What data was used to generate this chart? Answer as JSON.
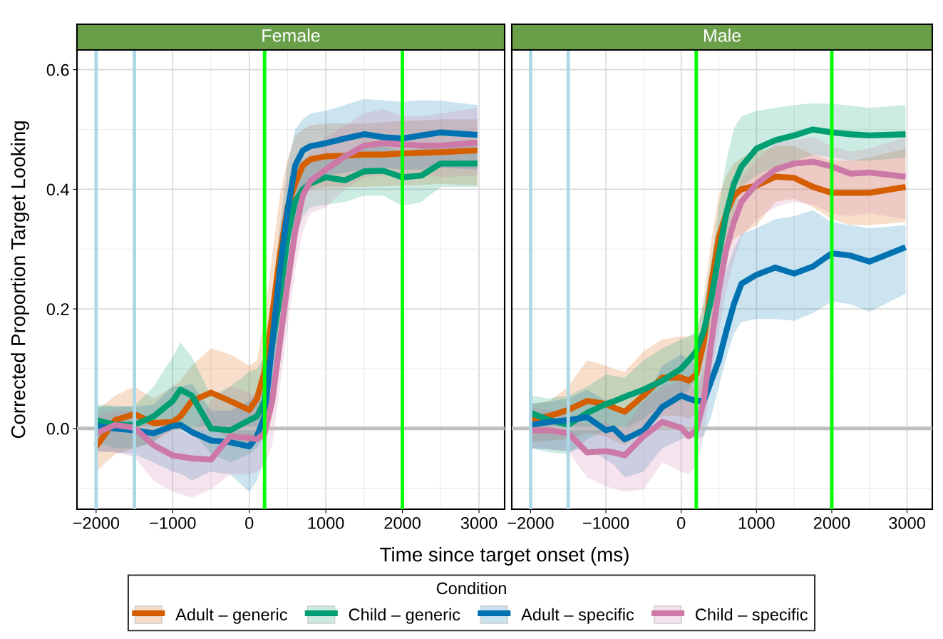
{
  "chart_data": [
    {
      "type": "line",
      "title": "Female",
      "xlabel": "Time since target onset (ms)",
      "ylabel": "Corrected Proportion Target Looking",
      "legend_title": "Condition",
      "legend": "bottom",
      "grid": true,
      "xlim": [
        -2250,
        3335
      ],
      "ylim": [
        -0.135,
        0.633
      ],
      "xticks": [
        -2000,
        -1000,
        0,
        1000,
        2000,
        3000
      ],
      "yticks": [
        {
          "value": 0,
          "label": "0.0"
        },
        0.2,
        0.4,
        0.6
      ],
      "ref_lines": [
        {
          "axis": "x",
          "value": -2000,
          "color": "#add8e6"
        },
        {
          "axis": "x",
          "value": -1500,
          "color": "#add8e6"
        },
        {
          "axis": "x",
          "value": 200,
          "color": "#00ff00"
        },
        {
          "axis": "x",
          "value": 2000,
          "color": "#00ff00"
        },
        {
          "axis": "y",
          "value": 0,
          "color": "#bebebe"
        }
      ],
      "x": [
        -2000,
        -1750,
        -1500,
        -1250,
        -1000,
        -900,
        -750,
        -500,
        -250,
        0,
        100,
        200,
        300,
        400,
        500,
        600,
        700,
        800,
        1000,
        1250,
        1500,
        1750,
        2000,
        2250,
        2500,
        2980
      ],
      "series": [
        {
          "name": "Adult – generic",
          "color": "#d55e00",
          "values": [
            -0.03,
            0.014,
            0.024,
            0.009,
            0.011,
            0.02,
            0.046,
            0.06,
            0.046,
            0.031,
            0.05,
            0.095,
            0.19,
            0.29,
            0.37,
            0.41,
            0.44,
            0.45,
            0.455,
            0.456,
            0.458,
            0.458,
            0.46,
            0.461,
            0.462,
            0.465
          ],
          "upper": [
            0.03,
            0.055,
            0.07,
            0.05,
            0.07,
            0.08,
            0.105,
            0.134,
            0.124,
            0.105,
            0.114,
            0.19,
            0.29,
            0.39,
            0.45,
            0.49,
            0.5,
            0.507,
            0.51,
            0.51,
            0.51,
            0.512,
            0.514,
            0.515,
            0.517,
            0.517
          ],
          "lower": [
            -0.072,
            -0.043,
            -0.033,
            -0.023,
            -0.003,
            -0.003,
            0.0,
            0.0,
            -0.018,
            -0.033,
            -0.023,
            -0.003,
            0.095,
            0.19,
            0.29,
            0.36,
            0.39,
            0.4,
            0.404,
            0.404,
            0.404,
            0.405,
            0.406,
            0.407,
            0.409,
            0.406
          ]
        },
        {
          "name": "Child – generic",
          "color": "#009e73",
          "values": [
            0.014,
            0.006,
            0.006,
            0.02,
            0.046,
            0.065,
            0.055,
            0.0,
            -0.003,
            0.014,
            0.02,
            0.046,
            0.14,
            0.22,
            0.32,
            0.38,
            0.4,
            0.41,
            0.42,
            0.415,
            0.43,
            0.431,
            0.42,
            0.423,
            0.443,
            0.443
          ],
          "upper": [
            0.04,
            0.038,
            0.038,
            0.07,
            0.12,
            0.144,
            0.12,
            0.055,
            0.07,
            0.095,
            0.1,
            0.12,
            0.19,
            0.29,
            0.39,
            0.43,
            0.45,
            0.455,
            0.458,
            0.458,
            0.468,
            0.472,
            0.463,
            0.468,
            0.472,
            0.472
          ],
          "lower": [
            -0.023,
            -0.033,
            -0.033,
            -0.023,
            0.006,
            0.006,
            -0.003,
            -0.043,
            -0.057,
            -0.043,
            -0.033,
            -0.013,
            0.07,
            0.144,
            0.24,
            0.315,
            0.355,
            0.37,
            0.374,
            0.379,
            0.389,
            0.389,
            0.372,
            0.379,
            0.404,
            0.404
          ]
        },
        {
          "name": "Adult – specific",
          "color": "#0072b2",
          "values": [
            0.004,
            0.0,
            -0.003,
            -0.008,
            0.004,
            0.006,
            -0.006,
            -0.02,
            -0.023,
            -0.03,
            -0.013,
            0.02,
            0.144,
            0.266,
            0.365,
            0.44,
            0.465,
            0.472,
            0.477,
            0.485,
            0.492,
            0.487,
            0.485,
            0.49,
            0.495,
            0.491
          ],
          "upper": [
            0.036,
            0.036,
            0.036,
            0.04,
            0.07,
            0.07,
            0.075,
            0.03,
            0.03,
            0.046,
            0.06,
            0.095,
            0.217,
            0.34,
            0.44,
            0.5,
            0.517,
            0.527,
            0.531,
            0.541,
            0.551,
            0.549,
            0.546,
            0.549,
            0.548,
            0.541
          ],
          "lower": [
            -0.038,
            -0.04,
            -0.043,
            -0.057,
            -0.072,
            -0.075,
            -0.087,
            -0.072,
            -0.077,
            -0.106,
            -0.087,
            -0.052,
            0.07,
            0.19,
            0.29,
            0.36,
            0.4,
            0.42,
            0.423,
            0.428,
            0.433,
            0.436,
            0.433,
            0.433,
            0.436,
            0.433
          ]
        },
        {
          "name": "Child – specific",
          "color": "#cc79a7",
          "values": [
            -0.008,
            0.006,
            0.001,
            -0.028,
            -0.045,
            -0.047,
            -0.05,
            -0.052,
            -0.013,
            -0.016,
            -0.018,
            -0.008,
            0.046,
            0.144,
            0.242,
            0.33,
            0.39,
            0.414,
            0.433,
            0.455,
            0.473,
            0.477,
            0.475,
            0.473,
            0.473,
            0.478
          ],
          "upper": [
            0.02,
            0.03,
            0.03,
            0.011,
            -0.003,
            -0.005,
            -0.013,
            0.046,
            0.07,
            0.06,
            0.055,
            0.07,
            0.144,
            0.242,
            0.34,
            0.414,
            0.448,
            0.463,
            0.487,
            0.507,
            0.527,
            0.534,
            0.522,
            0.522,
            0.527,
            0.536
          ],
          "lower": [
            -0.038,
            -0.04,
            -0.048,
            -0.087,
            -0.106,
            -0.11,
            -0.116,
            -0.102,
            -0.077,
            -0.077,
            -0.072,
            -0.062,
            -0.028,
            0.07,
            0.168,
            0.266,
            0.33,
            0.36,
            0.37,
            0.4,
            0.42,
            0.423,
            0.423,
            0.425,
            0.42,
            0.423
          ]
        }
      ]
    },
    {
      "type": "line",
      "title": "Male",
      "grid": true,
      "tick_labels": "x",
      "xlim": [
        -2250,
        3335
      ],
      "ylim": [
        -0.135,
        0.633
      ],
      "xticks": [
        -2000,
        -1000,
        0,
        1000,
        2000,
        3000
      ],
      "yticks": [
        {
          "value": 0,
          "label": null
        },
        {
          "value": 0.2,
          "label": null
        },
        {
          "value": 0.4,
          "label": null
        },
        {
          "value": 0.6,
          "label": null
        }
      ],
      "ref_lines": [
        {
          "axis": "x",
          "value": -2000,
          "color": "#add8e6"
        },
        {
          "axis": "x",
          "value": -1500,
          "color": "#add8e6"
        },
        {
          "axis": "x",
          "value": 200,
          "color": "#00ff00"
        },
        {
          "axis": "x",
          "value": 2000,
          "color": "#00ff00"
        },
        {
          "axis": "y",
          "value": 0,
          "color": "#bebebe"
        }
      ],
      "x": [
        -2000,
        -1750,
        -1500,
        -1250,
        -1000,
        -900,
        -750,
        -500,
        -250,
        0,
        100,
        200,
        300,
        400,
        500,
        600,
        700,
        800,
        1000,
        1250,
        1500,
        1750,
        2000,
        2250,
        2500,
        2980
      ],
      "series": [
        {
          "name": "Adult – generic",
          "color": "#d55e00",
          "values": [
            0.014,
            0.021,
            0.031,
            0.046,
            0.041,
            0.035,
            0.028,
            0.055,
            0.085,
            0.085,
            0.08,
            0.09,
            0.144,
            0.242,
            0.32,
            0.36,
            0.389,
            0.4,
            0.406,
            0.421,
            0.419,
            0.404,
            0.394,
            0.394,
            0.394,
            0.404
          ],
          "upper": [
            0.041,
            0.046,
            0.07,
            0.114,
            0.105,
            0.1,
            0.095,
            0.129,
            0.149,
            0.154,
            0.154,
            0.158,
            0.217,
            0.316,
            0.389,
            0.423,
            0.443,
            0.453,
            0.463,
            0.472,
            0.472,
            0.458,
            0.448,
            0.448,
            0.453,
            0.468
          ],
          "lower": [
            -0.023,
            -0.02,
            -0.018,
            -0.008,
            -0.013,
            -0.02,
            -0.028,
            -0.003,
            0.021,
            0.021,
            0.016,
            0.026,
            0.07,
            0.168,
            0.247,
            0.29,
            0.316,
            0.325,
            0.34,
            0.379,
            0.384,
            0.37,
            0.35,
            0.34,
            0.34,
            0.345
          ]
        },
        {
          "name": "Child – generic",
          "color": "#009e73",
          "values": [
            0.026,
            0.014,
            0.006,
            0.026,
            0.041,
            0.045,
            0.053,
            0.065,
            0.08,
            0.1,
            0.114,
            0.129,
            0.163,
            0.217,
            0.291,
            0.36,
            0.409,
            0.438,
            0.468,
            0.482,
            0.49,
            0.5,
            0.495,
            0.492,
            0.49,
            0.492
          ],
          "upper": [
            0.055,
            0.05,
            0.055,
            0.07,
            0.09,
            0.088,
            0.085,
            0.114,
            0.134,
            0.149,
            0.154,
            0.163,
            0.208,
            0.281,
            0.37,
            0.448,
            0.502,
            0.522,
            0.531,
            0.536,
            0.541,
            0.544,
            0.543,
            0.54,
            0.536,
            0.541
          ],
          "lower": [
            -0.033,
            -0.04,
            -0.043,
            -0.018,
            -0.003,
            -0.003,
            0.0,
            0.016,
            0.041,
            0.055,
            0.065,
            0.085,
            0.124,
            0.173,
            0.242,
            0.316,
            0.36,
            0.404,
            0.423,
            0.438,
            0.448,
            0.458,
            0.453,
            0.448,
            0.448,
            0.453
          ]
        },
        {
          "name": "Adult – specific",
          "color": "#0072b2",
          "values": [
            0.006,
            0.011,
            0.014,
            0.019,
            -0.003,
            0.0,
            -0.018,
            -0.003,
            0.036,
            0.055,
            0.05,
            0.046,
            0.046,
            0.08,
            0.114,
            0.163,
            0.208,
            0.242,
            0.257,
            0.269,
            0.259,
            0.271,
            0.293,
            0.289,
            0.279,
            0.303
          ],
          "upper": [
            0.041,
            0.045,
            0.05,
            0.065,
            0.046,
            0.04,
            0.031,
            0.046,
            0.105,
            0.124,
            0.114,
            0.109,
            0.129,
            0.163,
            0.217,
            0.266,
            0.3,
            0.325,
            0.335,
            0.35,
            0.355,
            0.365,
            0.345,
            0.34,
            0.335,
            0.34
          ],
          "lower": [
            -0.033,
            -0.035,
            -0.038,
            -0.033,
            -0.052,
            -0.06,
            -0.082,
            -0.072,
            -0.033,
            -0.018,
            -0.013,
            -0.018,
            -0.013,
            0.021,
            0.07,
            0.119,
            0.158,
            0.178,
            0.183,
            0.183,
            0.18,
            0.193,
            0.212,
            0.208,
            0.195,
            0.225
          ]
        },
        {
          "name": "Child – specific",
          "color": "#cc79a7",
          "values": [
            -0.003,
            -0.003,
            -0.008,
            -0.04,
            -0.038,
            -0.04,
            -0.045,
            -0.013,
            0.011,
            0.001,
            -0.013,
            -0.003,
            0.046,
            0.144,
            0.232,
            0.3,
            0.345,
            0.379,
            0.409,
            0.433,
            0.443,
            0.446,
            0.438,
            0.426,
            0.428,
            0.421
          ],
          "upper": [
            0.036,
            0.03,
            0.02,
            0.006,
            0.011,
            0.0,
            0.001,
            0.046,
            0.07,
            0.08,
            0.075,
            0.065,
            0.095,
            0.193,
            0.281,
            0.34,
            0.379,
            0.419,
            0.448,
            0.477,
            0.482,
            0.487,
            0.472,
            0.463,
            0.468,
            0.487
          ],
          "lower": [
            -0.033,
            -0.035,
            -0.038,
            -0.082,
            -0.097,
            -0.1,
            -0.106,
            -0.102,
            -0.057,
            -0.072,
            -0.077,
            -0.062,
            -0.013,
            0.085,
            0.163,
            0.232,
            0.281,
            0.32,
            0.35,
            0.37,
            0.379,
            0.374,
            0.36,
            0.355,
            0.36,
            0.35
          ]
        }
      ]
    }
  ]
}
